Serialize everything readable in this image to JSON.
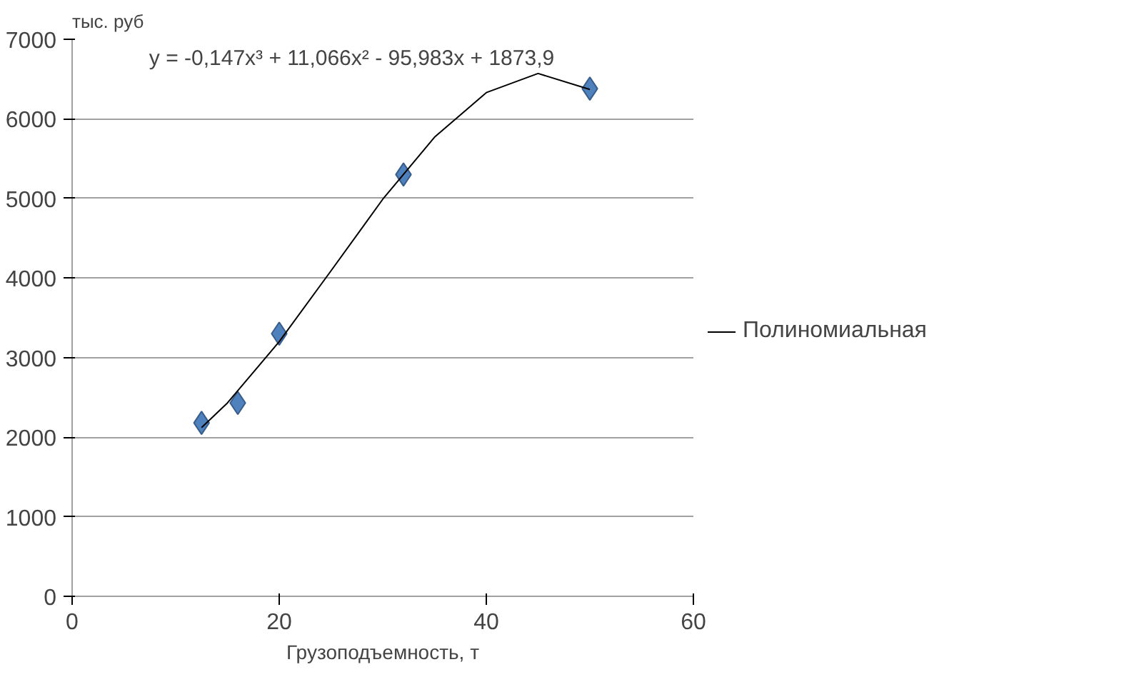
{
  "chart_data": {
    "type": "scatter",
    "xlabel": "Грузоподъемность, т",
    "ylabel": "тыс. руб",
    "annotations": [
      "y = -0,147x³ + 11,066x² - 95,983x + 1873,9"
    ],
    "xlim": [
      0,
      60
    ],
    "xticks": [
      0,
      20,
      40,
      60
    ],
    "ylim": [
      0,
      7000
    ],
    "yticks": [
      0,
      1000,
      2000,
      3000,
      4000,
      5000,
      6000,
      7000
    ],
    "grid": "y",
    "legend": "right",
    "series": [
      {
        "color": "#4f81bd",
        "marker": "diamond",
        "x": [
          12.5,
          16,
          20,
          32,
          50
        ],
        "values": [
          2180,
          2430,
          3300,
          5300,
          6380
        ]
      },
      {
        "type": "line",
        "name": "Полиномиальная",
        "color": "#000000",
        "line_style": "solid",
        "x": [
          12.5,
          15,
          20,
          25,
          30,
          35,
          40,
          45,
          50
        ],
        "values": [
          2120,
          2430,
          3200,
          4090,
          4990,
          5770,
          6330,
          6570,
          6370
        ]
      }
    ]
  }
}
